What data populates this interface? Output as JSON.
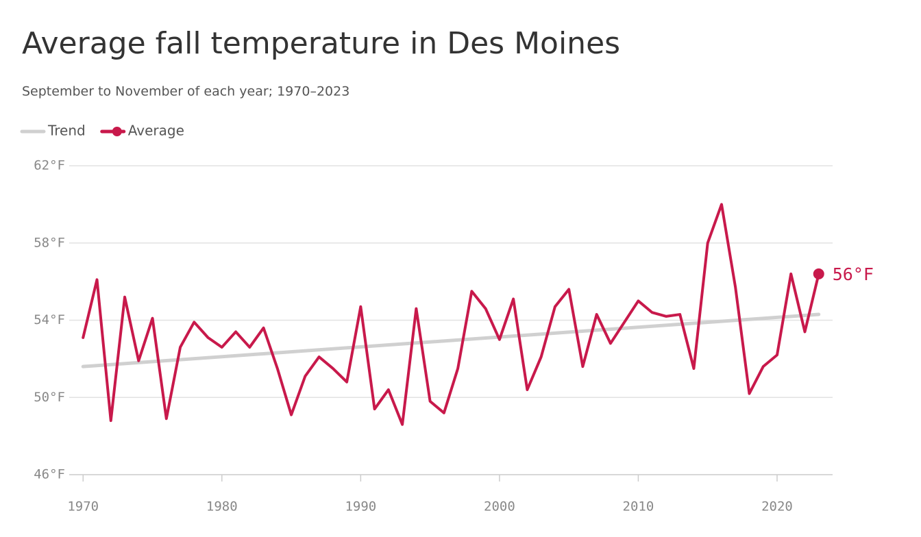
{
  "chart_data": {
    "type": "line",
    "title": "Average fall temperature in Des Moines",
    "subtitle": "September to November of each year; 1970–2023",
    "xlim": [
      1969,
      2024
    ],
    "xticks": [
      1970,
      1980,
      1990,
      2000,
      2010,
      2020
    ],
    "ylim": [
      46,
      62
    ],
    "yticks": [
      {
        "value": 46,
        "label": "46°F"
      },
      {
        "value": 50,
        "label": "50°F"
      },
      {
        "value": 54,
        "label": "54°F"
      },
      {
        "value": 58,
        "label": "58°F"
      },
      {
        "value": 62,
        "label": "62°F"
      }
    ],
    "grid": true,
    "series": [
      {
        "name": "Trend",
        "color": "#d0d0d0",
        "x": [
          1970,
          2023
        ],
        "values": [
          51.6,
          54.3
        ]
      },
      {
        "name": "Average",
        "color": "#c8194b",
        "x": [
          1970,
          1971,
          1972,
          1973,
          1974,
          1975,
          1976,
          1977,
          1978,
          1979,
          1980,
          1981,
          1982,
          1983,
          1984,
          1985,
          1986,
          1987,
          1988,
          1989,
          1990,
          1991,
          1992,
          1993,
          1994,
          1995,
          1996,
          1997,
          1998,
          1999,
          2000,
          2001,
          2002,
          2003,
          2004,
          2005,
          2006,
          2007,
          2008,
          2009,
          2010,
          2011,
          2012,
          2013,
          2014,
          2015,
          2016,
          2017,
          2018,
          2019,
          2020,
          2021,
          2022,
          2023
        ],
        "values": [
          53.1,
          56.1,
          48.8,
          55.2,
          51.9,
          54.1,
          48.9,
          52.6,
          53.9,
          53.1,
          52.6,
          53.4,
          52.6,
          53.6,
          51.5,
          49.1,
          51.1,
          52.1,
          51.5,
          50.8,
          54.7,
          49.4,
          50.4,
          48.6,
          54.6,
          49.8,
          49.2,
          51.5,
          55.5,
          54.6,
          53.0,
          55.1,
          50.4,
          52.1,
          54.7,
          55.6,
          51.6,
          54.3,
          52.8,
          53.9,
          55.0,
          54.4,
          54.2,
          54.3,
          51.5,
          58.0,
          60.0,
          55.7,
          50.2,
          51.6,
          52.2,
          56.4,
          53.4,
          56.4
        ],
        "value_labels": [
          null,
          null,
          null,
          null,
          null,
          null,
          null,
          null,
          null,
          null,
          null,
          null,
          null,
          null,
          null,
          null,
          null,
          null,
          null,
          null,
          null,
          null,
          null,
          null,
          null,
          null,
          null,
          null,
          null,
          null,
          null,
          null,
          null,
          null,
          null,
          null,
          null,
          null,
          null,
          null,
          null,
          null,
          null,
          null,
          null,
          null,
          null,
          null,
          null,
          null,
          null,
          null,
          null,
          "56°F"
        ]
      }
    ]
  }
}
